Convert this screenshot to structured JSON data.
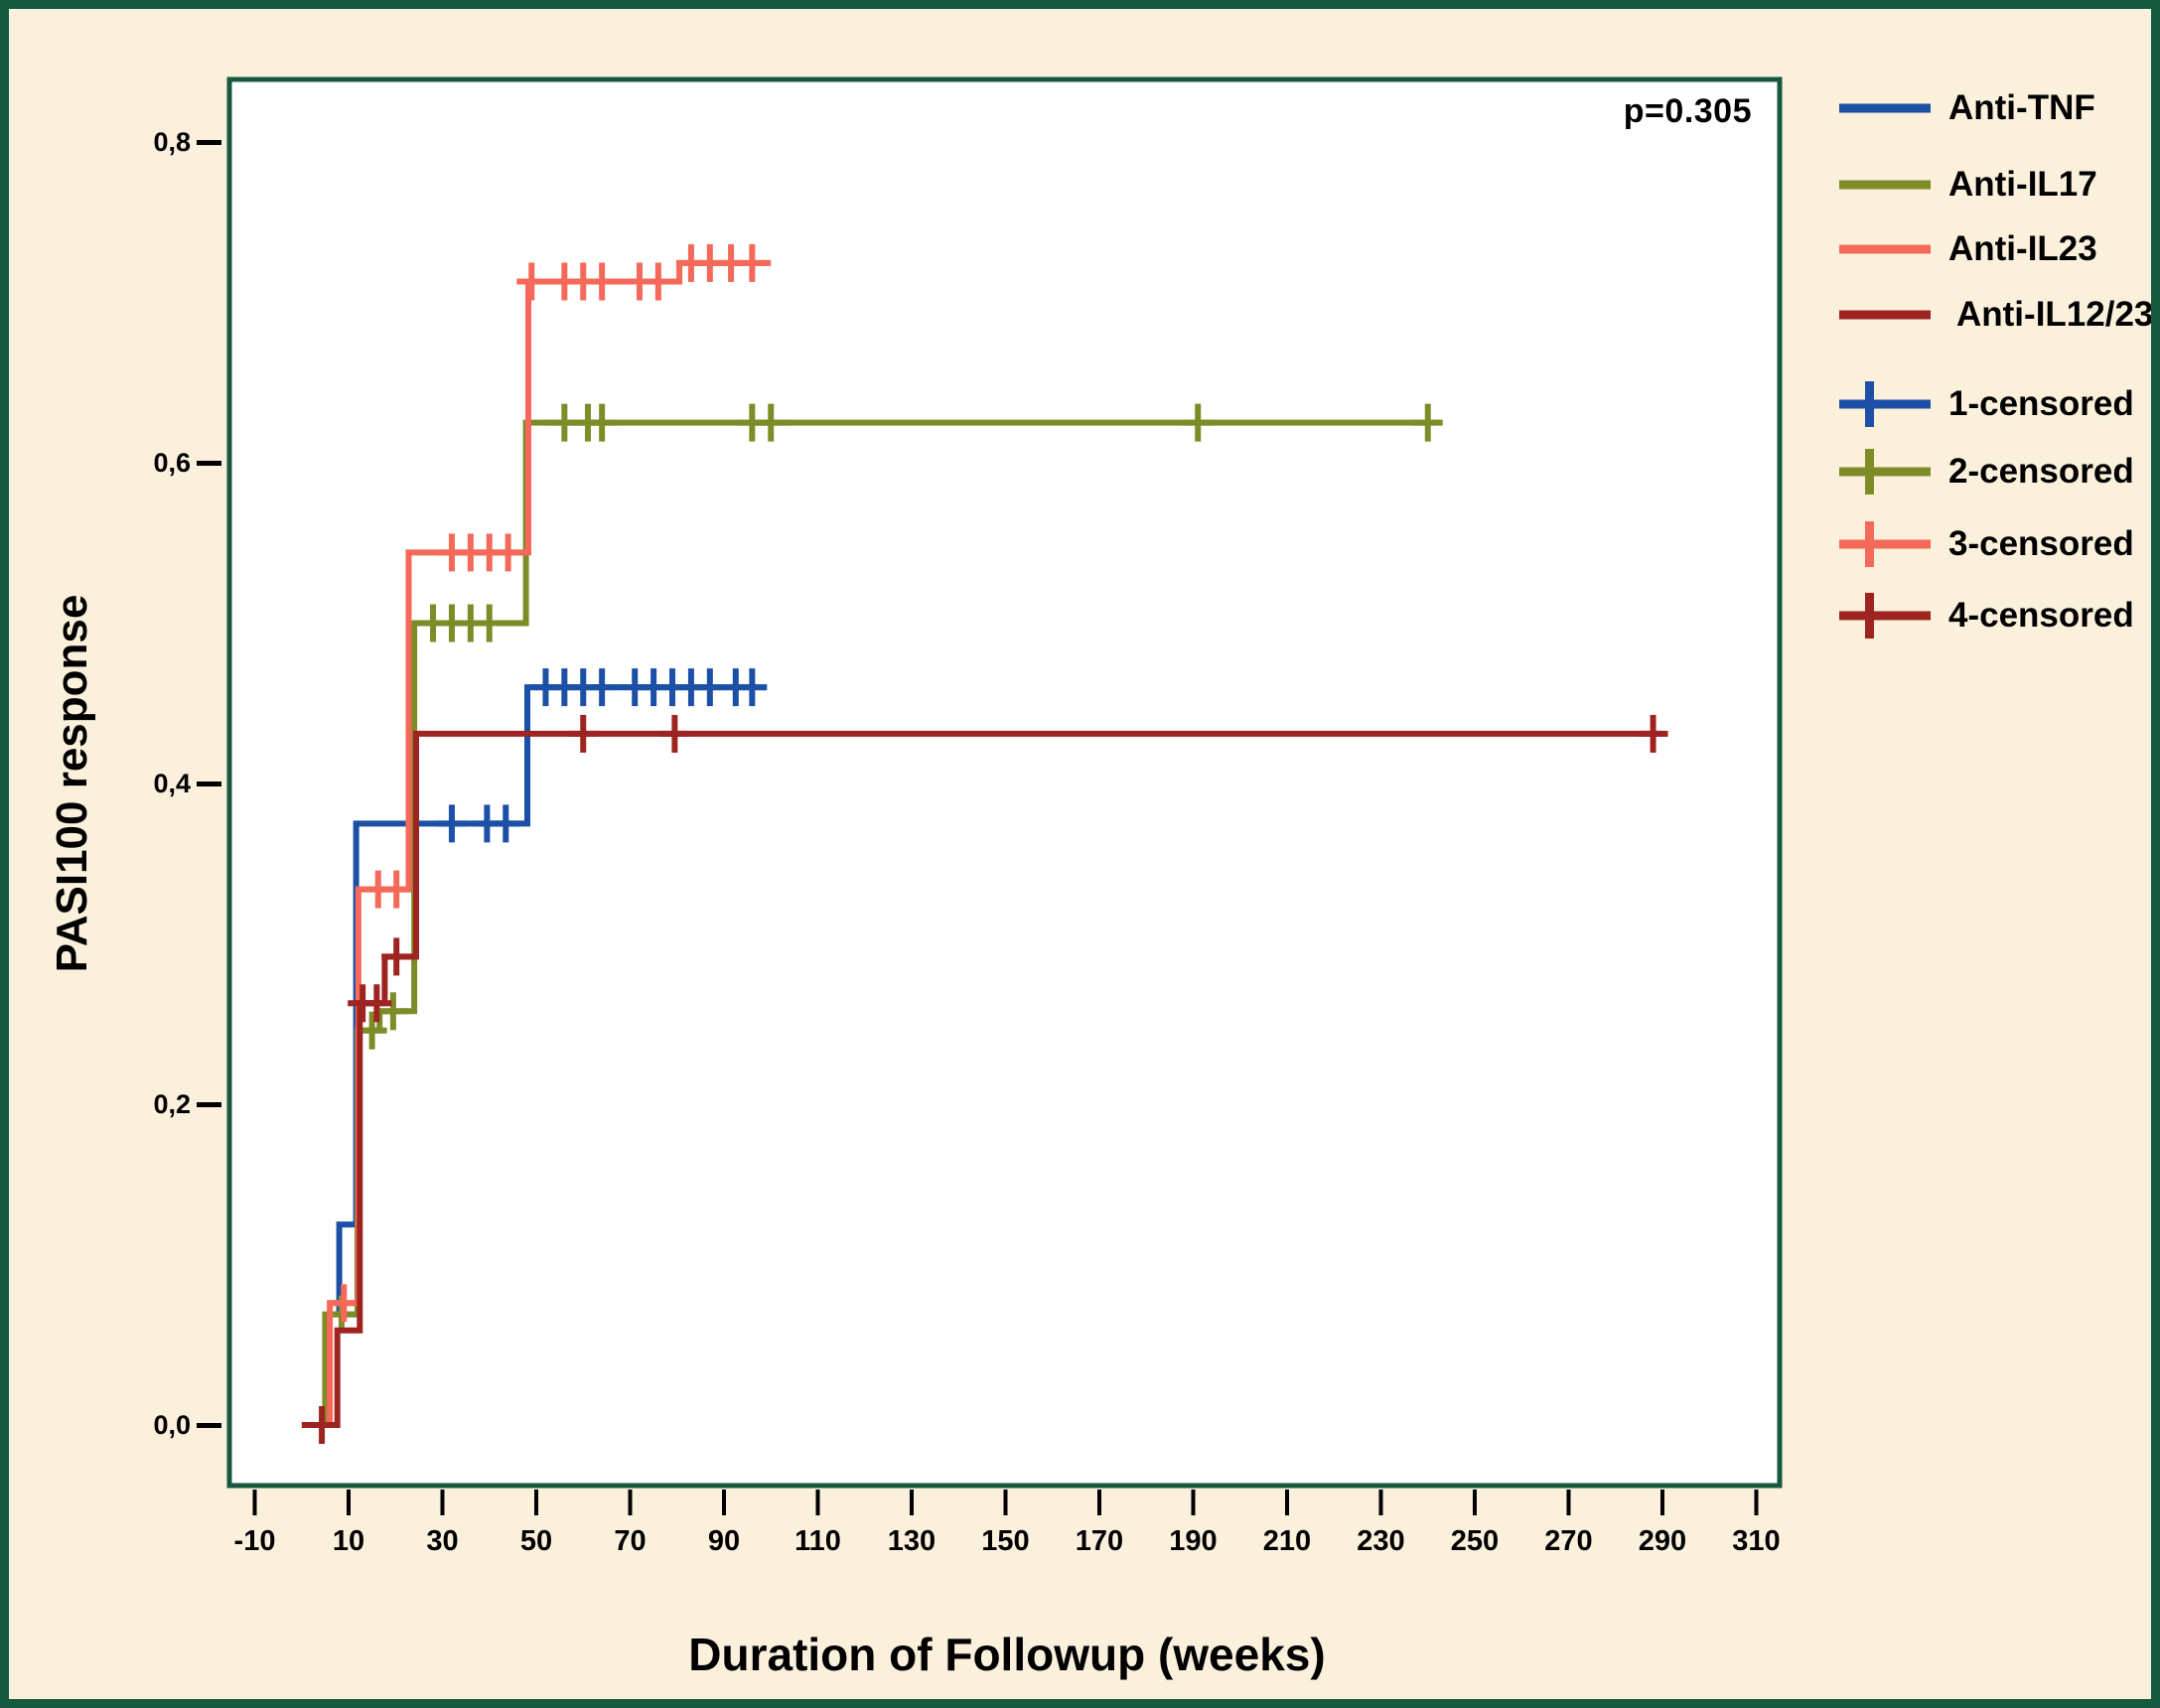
{
  "figure": {
    "background": "#faf0dc",
    "border_color": "#16593f",
    "plot_background": "#ffffff",
    "text_color": "#000000"
  },
  "chart_data": {
    "type": "line",
    "subtype": "kaplan-meier-step",
    "title": "",
    "xlabel": "Duration of Followup (weeks)",
    "ylabel": "PASI100 response",
    "annotation": "p=0.305",
    "xlim": [
      -15,
      316
    ],
    "ylim": [
      -0.04,
      0.84
    ],
    "grid": false,
    "legend_position": "right-outside",
    "x_ticks": [
      {
        "value": -10,
        "label": "-10"
      },
      {
        "value": 10,
        "label": "10"
      },
      {
        "value": 30,
        "label": "30"
      },
      {
        "value": 50,
        "label": "50"
      },
      {
        "value": 70,
        "label": "70"
      },
      {
        "value": 90,
        "label": "90"
      },
      {
        "value": 110,
        "label": "110"
      },
      {
        "value": 130,
        "label": "130"
      },
      {
        "value": 150,
        "label": "150"
      },
      {
        "value": 170,
        "label": "170"
      },
      {
        "value": 190,
        "label": "190"
      },
      {
        "value": 210,
        "label": "210"
      },
      {
        "value": 230,
        "label": "230"
      },
      {
        "value": 250,
        "label": "250"
      },
      {
        "value": 270,
        "label": "270"
      },
      {
        "value": 290,
        "label": "290"
      },
      {
        "value": 310,
        "label": "310"
      }
    ],
    "y_ticks": [
      {
        "value": 0.0,
        "label": "0,0"
      },
      {
        "value": 0.2,
        "label": "0,2"
      },
      {
        "value": 0.4,
        "label": "0,4"
      },
      {
        "value": 0.6,
        "label": "0,6"
      },
      {
        "value": 0.8,
        "label": "0,8"
      }
    ],
    "series": [
      {
        "name": "Anti-TNF",
        "color": "#1c4fa6",
        "steps": [
          [
            8,
            0.068
          ],
          [
            8,
            0.125
          ],
          [
            11.6,
            0.125
          ],
          [
            11.6,
            0.375
          ],
          [
            48.1,
            0.375
          ],
          [
            48.1,
            0.46
          ],
          [
            99,
            0.46
          ]
        ],
        "censors": [
          [
            32,
            0.375
          ],
          [
            39.5,
            0.375
          ],
          [
            43.5,
            0.375
          ],
          [
            52,
            0.46
          ],
          [
            56,
            0.46
          ],
          [
            60,
            0.46
          ],
          [
            64,
            0.46
          ],
          [
            71,
            0.46
          ],
          [
            75,
            0.46
          ],
          [
            79,
            0.46
          ],
          [
            83,
            0.46
          ],
          [
            87,
            0.46
          ],
          [
            92.5,
            0.46
          ],
          [
            96,
            0.46
          ]
        ]
      },
      {
        "name": "Anti-IL17",
        "color": "#7e8c28",
        "steps": [
          [
            5,
            0
          ],
          [
            5,
            0.069
          ],
          [
            11.9,
            0.069
          ],
          [
            11.9,
            0.246
          ],
          [
            16.6,
            0.246
          ],
          [
            16.6,
            0.258
          ],
          [
            24,
            0.258
          ],
          [
            24,
            0.5
          ],
          [
            47.8,
            0.5
          ],
          [
            47.8,
            0.625
          ],
          [
            241.5,
            0.625
          ]
        ],
        "censors": [
          [
            8.5,
            0.069
          ],
          [
            15,
            0.246
          ],
          [
            19.5,
            0.258
          ],
          [
            28,
            0.5
          ],
          [
            32,
            0.5
          ],
          [
            36,
            0.5
          ],
          [
            40,
            0.5
          ],
          [
            56,
            0.625
          ],
          [
            61,
            0.625
          ],
          [
            64,
            0.625
          ],
          [
            96,
            0.625
          ],
          [
            100,
            0.625
          ],
          [
            191,
            0.625
          ],
          [
            240,
            0.625
          ]
        ]
      },
      {
        "name": "Anti-IL23",
        "color": "#f4695a",
        "steps": [
          [
            6,
            0
          ],
          [
            6,
            0.076
          ],
          [
            12.1,
            0.076
          ],
          [
            12.1,
            0.334
          ],
          [
            22.8,
            0.334
          ],
          [
            22.8,
            0.544
          ],
          [
            48.3,
            0.544
          ],
          [
            48.3,
            0.713
          ],
          [
            80.5,
            0.713
          ],
          [
            80.5,
            0.7245
          ],
          [
            100,
            0.7245
          ]
        ],
        "censors": [
          [
            9,
            0.076
          ],
          [
            16.3,
            0.334
          ],
          [
            20.2,
            0.334
          ],
          [
            32,
            0.544
          ],
          [
            36,
            0.544
          ],
          [
            40,
            0.544
          ],
          [
            44,
            0.544
          ],
          [
            49,
            0.713
          ],
          [
            56,
            0.713
          ],
          [
            60,
            0.713
          ],
          [
            64,
            0.713
          ],
          [
            72,
            0.713
          ],
          [
            76,
            0.713
          ],
          [
            83,
            0.7245
          ],
          [
            87,
            0.7245
          ],
          [
            91.5,
            0.7245
          ],
          [
            96,
            0.7245
          ]
        ]
      },
      {
        "name": "Anti-IL12/23",
        "color": "#9e2421",
        "steps": [
          [
            0,
            0
          ],
          [
            7.6,
            0
          ],
          [
            7.6,
            0.059
          ],
          [
            12.4,
            0.059
          ],
          [
            12.4,
            0.263
          ],
          [
            17.7,
            0.263
          ],
          [
            17.7,
            0.292
          ],
          [
            24.4,
            0.292
          ],
          [
            24.4,
            0.431
          ],
          [
            290,
            0.431
          ]
        ],
        "censors": [
          [
            4.3,
            0
          ],
          [
            13,
            0.263
          ],
          [
            16,
            0.263
          ],
          [
            20.2,
            0.292
          ],
          [
            60,
            0.431
          ],
          [
            79.5,
            0.431
          ],
          [
            288,
            0.431
          ]
        ]
      }
    ],
    "legend": {
      "items": [
        {
          "label": "Anti-TNF",
          "color": "#1c4fa6",
          "type": "line"
        },
        {
          "label": "Anti-IL17",
          "color": "#7e8c28",
          "type": "line"
        },
        {
          "label": "Anti-IL23",
          "color": "#f4695a",
          "type": "line"
        },
        {
          "label": "Anti-IL12/23",
          "color": "#9e2421",
          "type": "line"
        },
        {
          "label": "1-censored",
          "color": "#1c4fa6",
          "type": "censored"
        },
        {
          "label": "2-censored",
          "color": "#7e8c28",
          "type": "censored"
        },
        {
          "label": "3-censored",
          "color": "#f4695a",
          "type": "censored"
        },
        {
          "label": "4-censored",
          "color": "#9e2421",
          "type": "censored"
        }
      ]
    }
  }
}
